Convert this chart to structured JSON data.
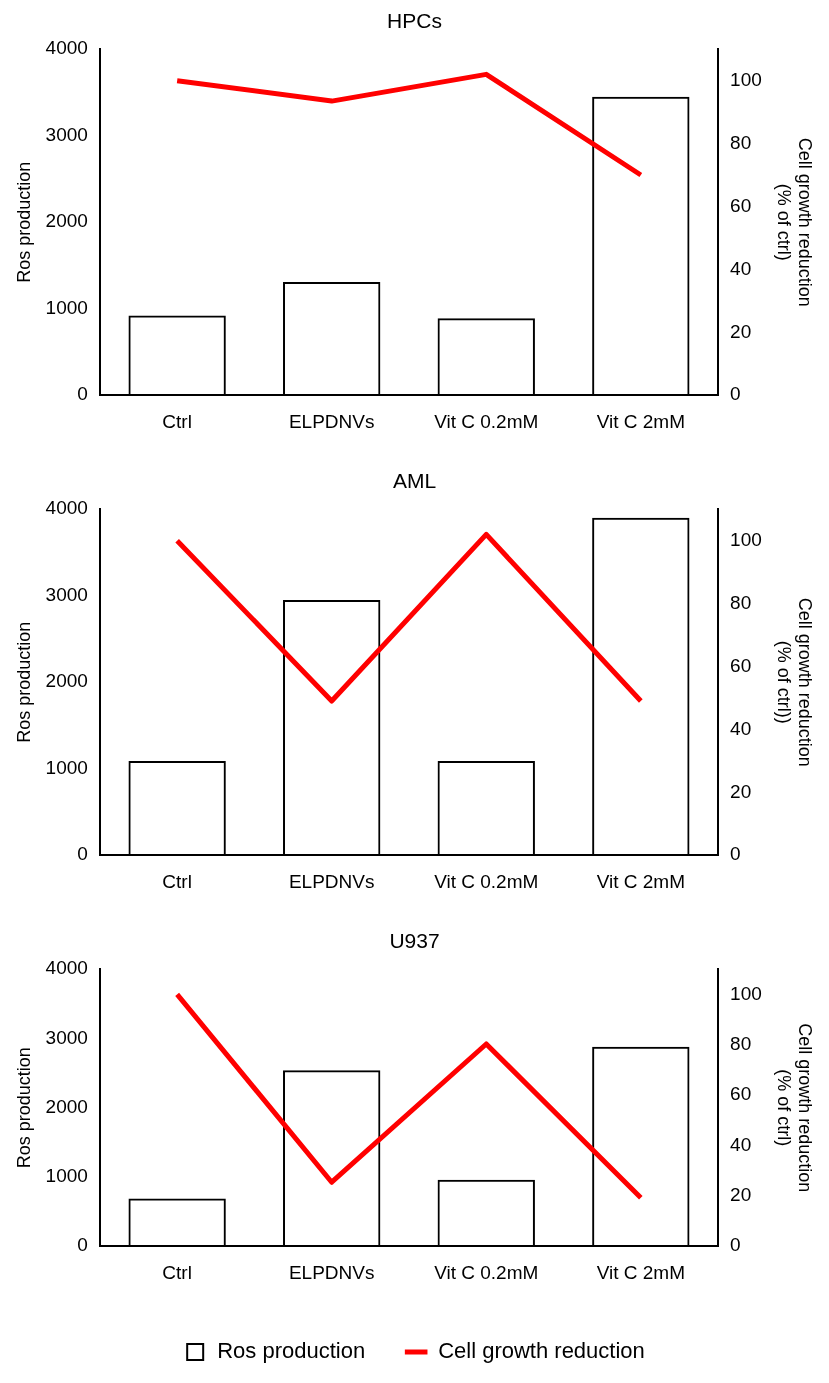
{
  "chart_data": [
    {
      "type": "bar",
      "title": "HPCs",
      "ylabel": "Ros production",
      "y2label": "Cell growth reduction\n(% of ctrl)",
      "categories": [
        "Ctrl",
        "ELPDNVs",
        "Vit C 0.2mM",
        "Vit C 2mM"
      ],
      "ylim": [
        0,
        4000
      ],
      "yticks": [
        0,
        1000,
        2000,
        3000,
        4000
      ],
      "y2lim": [
        0,
        110
      ],
      "y2ticks": [
        0,
        20,
        40,
        60,
        80,
        100
      ],
      "legend": false,
      "series": [
        {
          "color": "#000000",
          "values": [
            920,
            1310,
            890,
            3450
          ]
        },
        {
          "type": "line",
          "axis": "y2",
          "color": "#ff0000",
          "values": [
            100,
            93.5,
            102,
            70
          ]
        }
      ]
    },
    {
      "type": "bar",
      "title": "AML",
      "ylabel": "Ros production",
      "y2label": "Cell growth reduction\n(% of ctrl))",
      "categories": [
        "Ctrl",
        "ELPDNVs",
        "Vit C 0.2mM",
        "Vit C 2mM"
      ],
      "ylim": [
        0,
        4000
      ],
      "yticks": [
        0,
        1000,
        2000,
        3000,
        4000
      ],
      "y2lim": [
        0,
        110
      ],
      "y2ticks": [
        0,
        20,
        40,
        60,
        80,
        100
      ],
      "legend": false,
      "series": [
        {
          "color": "#000000",
          "values": [
            1090,
            2950,
            1090,
            3900
          ]
        },
        {
          "type": "line",
          "axis": "y2",
          "color": "#ff0000",
          "values": [
            100,
            49,
            102,
            49
          ]
        }
      ]
    },
    {
      "type": "bar",
      "title": "U937",
      "ylabel": "Ros production",
      "y2label": "Cell growth reduction\n(% of ctrl)",
      "categories": [
        "Ctrl",
        "ELPDNVs",
        "Vit C 0.2mM",
        "Vit C 2mM"
      ],
      "ylim": [
        0,
        4000
      ],
      "yticks": [
        0,
        1000,
        2000,
        3000,
        4000
      ],
      "y2lim": [
        0,
        110
      ],
      "y2ticks": [
        0,
        20,
        40,
        60,
        80,
        100
      ],
      "legend": "bottom",
      "series": [
        {
          "name": "Ros production",
          "color": "#000000",
          "values": [
            690,
            2540,
            960,
            2880
          ]
        },
        {
          "type": "line",
          "name": "Cell growth reduction",
          "axis": "y2",
          "color": "#ff0000",
          "values": [
            100,
            25.4,
            80.3,
            19.2
          ]
        }
      ]
    }
  ]
}
